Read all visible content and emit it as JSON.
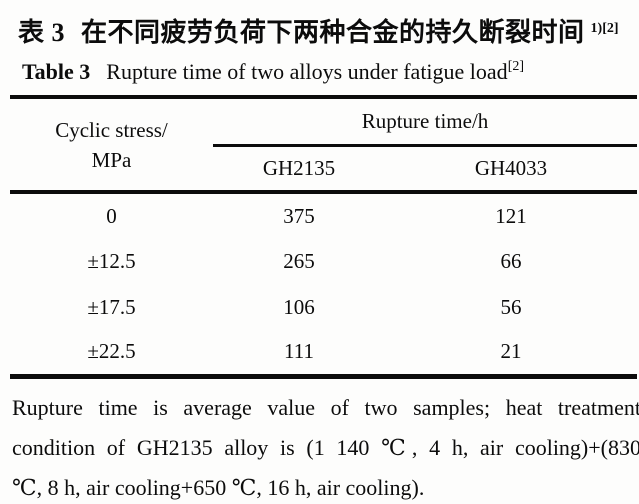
{
  "page": {
    "background_color": "#fdfdfc",
    "text_color": "#0c0c0c",
    "rule_color": "#0c0c0c"
  },
  "caption": {
    "zh": {
      "label": "表 3",
      "title": "在不同疲劳负荷下两种合金的持久断裂时间",
      "superscript": "1)[2]"
    },
    "en": {
      "label": "Table 3",
      "title": "Rupture time of two alloys under fatigue load",
      "superscript": "[2]"
    }
  },
  "table": {
    "stub_header_line1": "Cyclic stress/",
    "stub_header_line2": "MPa",
    "spanner_header": "Rupture time/h",
    "sub_headers": [
      "GH2135",
      "GH4033"
    ],
    "rows": [
      {
        "stress": "0",
        "gh2135": "375",
        "gh4033": "121"
      },
      {
        "stress": "±12.5",
        "gh2135": "265",
        "gh4033": "66"
      },
      {
        "stress": "±17.5",
        "gh2135": "106",
        "gh4033": "56"
      },
      {
        "stress": "±22.5",
        "gh2135": "111",
        "gh4033": "21"
      }
    ]
  },
  "footnote": {
    "lines": [
      "Rupture time is average value of two samples; heat treatment",
      "condition of GH2135 alloy is (1 140 ℃, 4 h, air cooling)+(830",
      "℃, 8 h, air cooling+650 ℃, 16 h, air cooling)."
    ]
  }
}
